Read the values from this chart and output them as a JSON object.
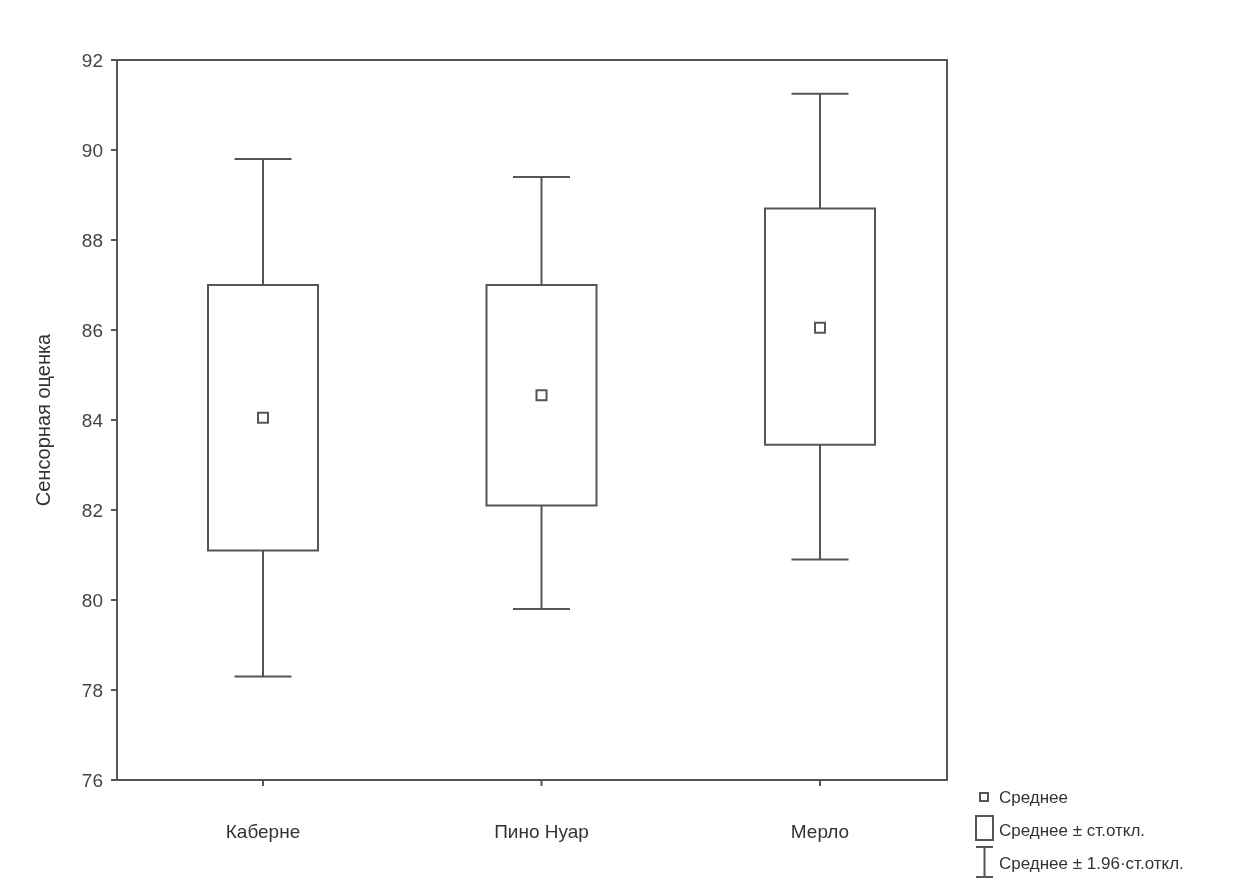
{
  "chart_data": {
    "type": "box",
    "ylabel": "Сенсорная оценка",
    "categories": [
      "Каберне",
      "Пино Нуар",
      "Мерло"
    ],
    "boxes": [
      {
        "low": 78.3,
        "q1": 81.1,
        "q3": 87.0,
        "high": 89.8,
        "mean": 84.05
      },
      {
        "low": 79.8,
        "q1": 82.1,
        "q3": 87.0,
        "high": 89.4,
        "mean": 84.55
      },
      {
        "low": 80.9,
        "q1": 83.45,
        "q3": 88.7,
        "high": 91.25,
        "mean": 86.05
      }
    ],
    "color": "#555555",
    "marker": "square",
    "ylim": [
      76,
      92
    ],
    "yticks": [
      76,
      78,
      80,
      82,
      84,
      86,
      88,
      90,
      92
    ],
    "annotations": [
      "Среднее",
      "Среднее ± ст.откл.",
      "Среднее ± 1.96·ст.откл."
    ]
  }
}
